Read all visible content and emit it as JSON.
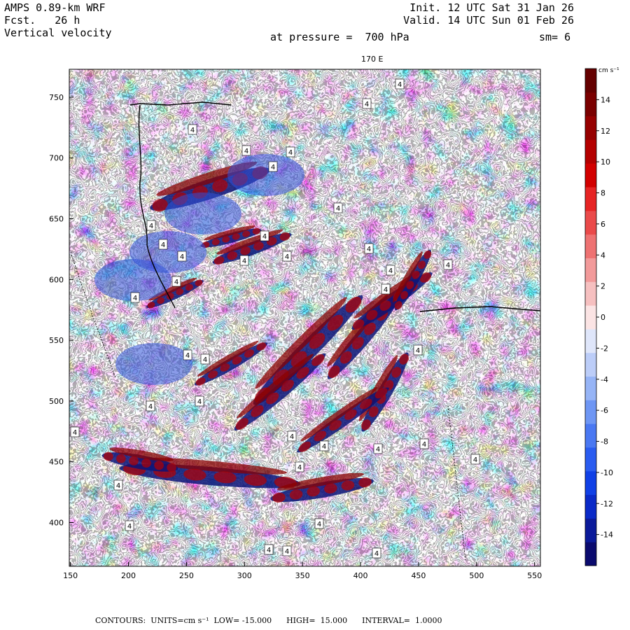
{
  "header": {
    "model": "AMPS 0.89-km WRF",
    "fcst_label": "Fcst.",
    "fcst_value": "26 h",
    "field": "Vertical velocity",
    "init": "Init. 12 UTC Sat 31 Jan 26",
    "valid": "Valid. 14 UTC Sun 01 Feb 26",
    "pressure": "at pressure =  700 hPa",
    "smoothing": "sm= 6"
  },
  "map": {
    "meridian_label": "170 E",
    "x_ticks": [
      "150",
      "200",
      "250",
      "300",
      "350",
      "400",
      "450",
      "500",
      "550"
    ],
    "x_tick_values": [
      150,
      200,
      250,
      300,
      350,
      400,
      450,
      500,
      550
    ],
    "y_ticks": [
      "750",
      "700",
      "650",
      "600",
      "550",
      "500",
      "450",
      "400"
    ],
    "y_tick_values": [
      750,
      700,
      650,
      600,
      550,
      500,
      450,
      400
    ],
    "x_range": [
      149,
      555
    ],
    "y_range": [
      364,
      773
    ],
    "contour_label": "4"
  },
  "colorbar": {
    "units": "cm s⁻¹",
    "tick_labels": [
      "14",
      "12",
      "10",
      "8",
      "6",
      "4",
      "2",
      "0",
      "-2",
      "-4",
      "-6",
      "-8",
      "-10",
      "-12",
      "-14"
    ],
    "colors": [
      "#0a0a6e",
      "#0b1a9a",
      "#0a2ac8",
      "#1040e6",
      "#2a5cf0",
      "#4a78f2",
      "#6e96f4",
      "#96b4f6",
      "#bccdf8",
      "#dfe6fa",
      "#fbe4e4",
      "#f6c0c0",
      "#f29a9a",
      "#ee7272",
      "#ea4a4a",
      "#e62424",
      "#d20000",
      "#b40000",
      "#960000",
      "#7a0000",
      "#640000"
    ]
  },
  "footer": {
    "contours_label": "CONTOURS:",
    "units_label": "UNITS=cm s⁻¹",
    "low_label": "LOW=",
    "low_value": "-15.000",
    "high_label": "HIGH=",
    "high_value": "15.000",
    "interval_label": "INTERVAL=",
    "interval_value": "1.0000"
  }
}
